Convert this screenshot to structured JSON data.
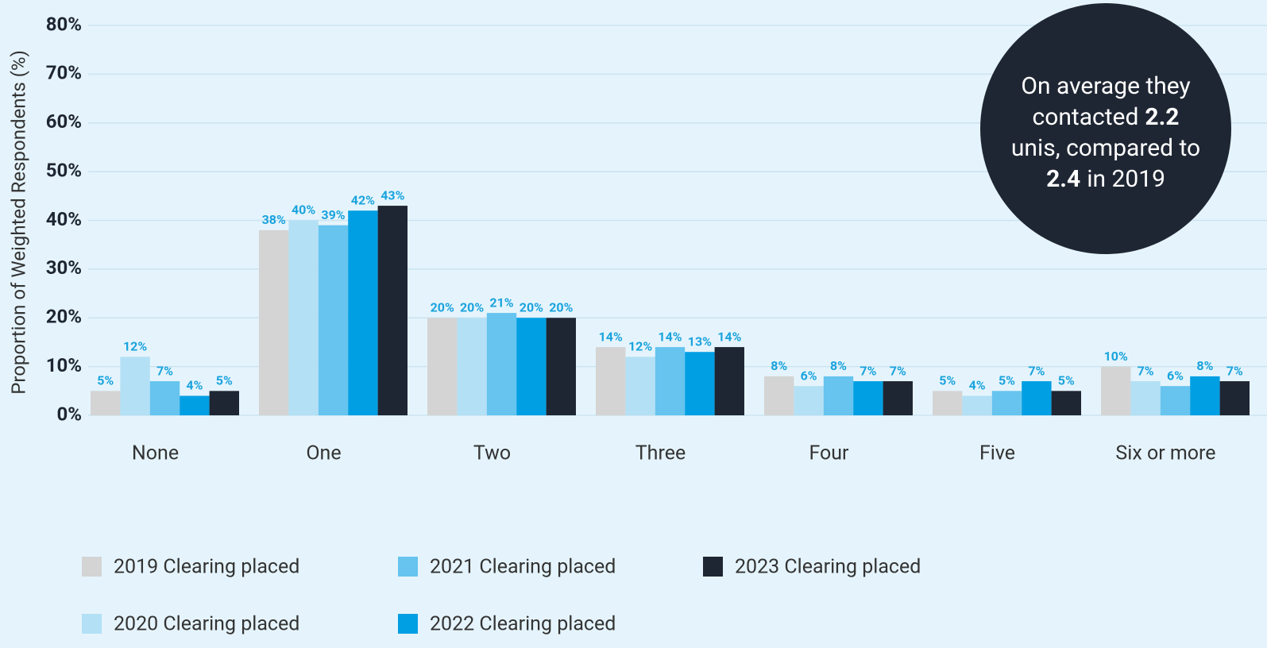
{
  "chart_data": {
    "type": "bar",
    "y_label": "Proportion of Weighted Respondents (%)",
    "categories": [
      "None",
      "One",
      "Two",
      "Three",
      "Four",
      "Five",
      "Six or more"
    ],
    "series": [
      {
        "name": "2019 Clearing placed",
        "color": "#d4d4d4",
        "values": [
          5,
          38,
          20,
          14,
          8,
          5,
          10
        ],
        "value_labels": [
          "5%",
          "38%",
          "20%",
          "14%",
          "8%",
          "5%",
          "10%"
        ]
      },
      {
        "name": "2020 Clearing placed",
        "color": "#b3e0f5",
        "values": [
          12,
          40,
          20,
          12,
          6,
          4,
          7
        ],
        "value_labels": [
          "12%",
          "40%",
          "20%",
          "12%",
          "6%",
          "4%",
          "7%"
        ]
      },
      {
        "name": "2021 Clearing placed",
        "color": "#66c4ef",
        "values": [
          7,
          39,
          21,
          14,
          8,
          5,
          6
        ],
        "value_labels": [
          "7%",
          "39%",
          "21%",
          "14%",
          "8%",
          "5%",
          "6%"
        ]
      },
      {
        "name": "2022 Clearing placed",
        "color": "#009fe3",
        "values": [
          4,
          42,
          20,
          13,
          7,
          7,
          8
        ],
        "value_labels": [
          "4%",
          "42%",
          "20%",
          "13%",
          "7%",
          "7%",
          "8%"
        ]
      },
      {
        "name": "2023 Clearing placed",
        "color": "#1f2633",
        "values": [
          5,
          43,
          20,
          14,
          7,
          5,
          7
        ],
        "value_labels": [
          "5%",
          "43%",
          "20%",
          "14%",
          "7%",
          "5%",
          "7%"
        ]
      }
    ],
    "ylim": [
      0,
      80
    ],
    "yticks": [
      {
        "value": 0,
        "label": "0%"
      },
      {
        "value": 10,
        "label": "10%"
      },
      {
        "value": 20,
        "label": "20%"
      },
      {
        "value": 30,
        "label": "30%"
      },
      {
        "value": 40,
        "label": "40%"
      },
      {
        "value": 50,
        "label": "50%"
      },
      {
        "value": 60,
        "label": "60%"
      },
      {
        "value": 70,
        "label": "70%"
      },
      {
        "value": 80,
        "label": "80%"
      }
    ],
    "grid": true,
    "annotation": [
      "On average they",
      "contacted",
      "2.2",
      "unis, compared to",
      "2.4",
      "in 2019"
    ]
  }
}
